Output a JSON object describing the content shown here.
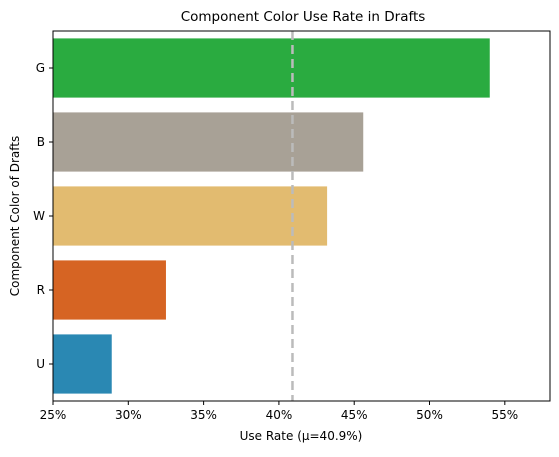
{
  "chart_data": {
    "type": "bar",
    "orientation": "horizontal",
    "title": "Component Color Use Rate in Drafts",
    "xlabel": "Use Rate (μ=40.9%)",
    "ylabel": "Component Color of Drafts",
    "categories": [
      "G",
      "B",
      "W",
      "R",
      "U"
    ],
    "values": [
      54.0,
      45.6,
      43.2,
      32.5,
      28.9
    ],
    "colors": [
      "#2aab40",
      "#a8a196",
      "#e2bb70",
      "#d66423",
      "#2a88b3"
    ],
    "xlim": [
      25,
      58
    ],
    "xticks": [
      25,
      30,
      35,
      40,
      45,
      50,
      55
    ],
    "xtick_labels": [
      "25%",
      "30%",
      "35%",
      "40%",
      "45%",
      "50%",
      "55%"
    ],
    "mean_line": {
      "value": 40.9,
      "color": "#bbbbbb",
      "style": "dashed"
    },
    "grid": false,
    "legend": "none"
  }
}
